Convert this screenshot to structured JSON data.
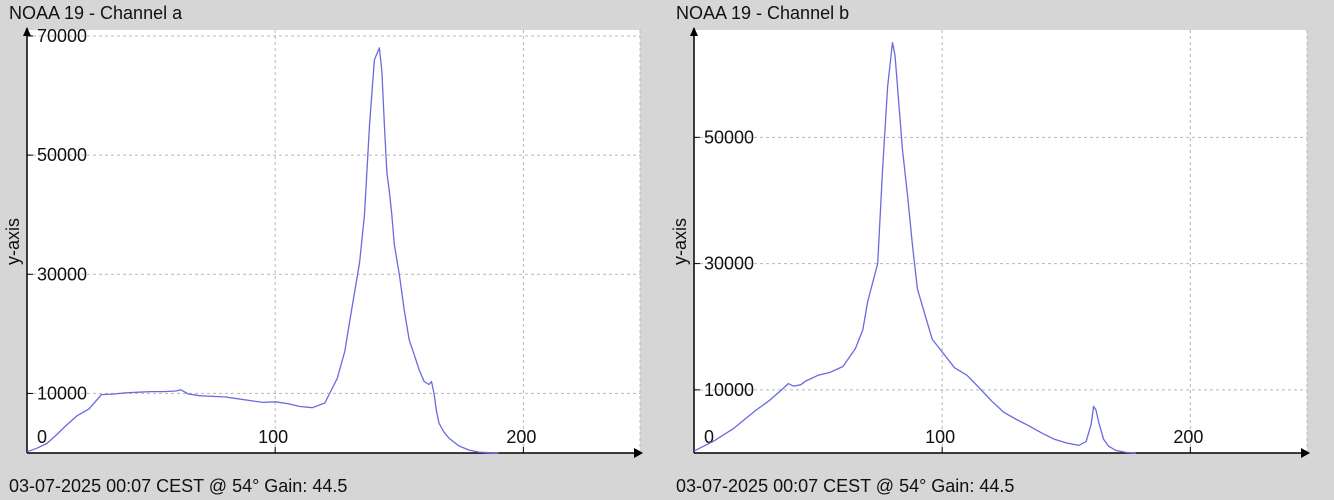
{
  "chart_data": [
    {
      "type": "line",
      "title": "NOAA 19 - Channel a",
      "footer": "03-07-2025 00:07 CEST @ 54° Gain: 44.5",
      "ylabel": "y-axis",
      "xlabel": "",
      "xlim": [
        0,
        247
      ],
      "ylim": [
        0,
        71000
      ],
      "xticks": [
        0,
        100,
        200
      ],
      "yticks": [
        10000,
        30000,
        50000,
        70000
      ],
      "grid": true,
      "line_color": "#6a6ae0",
      "series": [
        {
          "x": [
            0,
            4,
            8,
            12,
            16,
            20,
            25,
            30,
            35,
            40,
            45,
            50,
            55,
            60,
            62,
            65,
            70,
            75,
            80,
            85,
            90,
            95,
            100,
            105,
            110,
            115,
            120,
            125,
            128,
            130,
            132,
            134,
            136,
            138,
            140,
            142,
            143,
            144,
            145,
            146,
            147,
            148,
            150,
            152,
            154,
            156,
            158,
            160,
            162,
            163,
            164,
            165,
            166,
            168,
            170,
            174,
            178,
            182,
            186,
            190
          ],
          "y": [
            200,
            800,
            1600,
            3100,
            4700,
            6200,
            7400,
            9800,
            9900,
            10100,
            10200,
            10300,
            10300,
            10400,
            10600,
            9900,
            9600,
            9500,
            9400,
            9100,
            8800,
            8500,
            8600,
            8300,
            7800,
            7600,
            8400,
            12500,
            17000,
            22000,
            27000,
            32000,
            40000,
            55000,
            66000,
            68000,
            64000,
            55000,
            47000,
            44000,
            40000,
            35000,
            30000,
            24000,
            19000,
            16500,
            14000,
            12000,
            11500,
            12000,
            10000,
            7000,
            5000,
            3500,
            2500,
            1200,
            500,
            150,
            50,
            0
          ]
        }
      ]
    },
    {
      "type": "line",
      "title": "NOAA 19 - Channel b",
      "footer": "03-07-2025 00:07 CEST @ 54° Gain: 44.5",
      "ylabel": "y-axis",
      "xlabel": "",
      "xlim": [
        0,
        247
      ],
      "ylim": [
        0,
        67000
      ],
      "xticks": [
        0,
        100,
        200
      ],
      "yticks": [
        10000,
        30000,
        50000
      ],
      "grid": true,
      "line_color": "#6a6ae0",
      "series": [
        {
          "x": [
            0,
            4,
            8,
            12,
            16,
            20,
            25,
            30,
            35,
            38,
            40,
            43,
            45,
            50,
            55,
            60,
            65,
            68,
            70,
            72,
            74,
            76,
            78,
            80,
            81,
            82,
            83,
            84,
            86,
            88,
            90,
            93,
            96,
            100,
            105,
            110,
            115,
            120,
            125,
            130,
            135,
            140,
            145,
            150,
            155,
            158,
            160,
            161,
            162,
            163,
            165,
            167,
            170,
            174,
            178
          ],
          "y": [
            300,
            1100,
            1900,
            2900,
            3900,
            5200,
            6800,
            8200,
            9900,
            11000,
            10600,
            10800,
            11400,
            12300,
            12800,
            13700,
            16500,
            19500,
            24000,
            27000,
            30000,
            45000,
            58000,
            65000,
            63000,
            58000,
            53000,
            48000,
            41000,
            33000,
            26000,
            22000,
            18000,
            16000,
            13500,
            12300,
            10300,
            8200,
            6400,
            5300,
            4300,
            3200,
            2200,
            1600,
            1200,
            1800,
            4500,
            7400,
            6800,
            5000,
            2200,
            1100,
            400,
            100,
            0
          ]
        }
      ]
    }
  ]
}
